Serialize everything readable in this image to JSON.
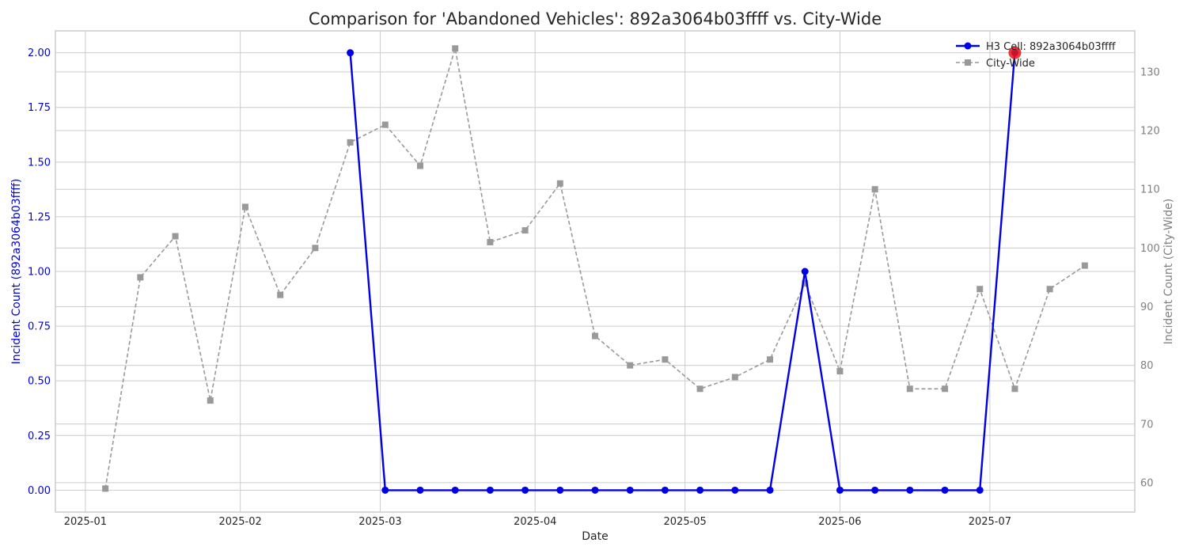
{
  "chart_data": {
    "type": "line",
    "title": "Comparison for 'Abandoned Vehicles': 892a3064b03ffff vs. City-Wide",
    "xlabel": "Date",
    "ylabel_left": "Incident Count (892a3064b03ffff)",
    "ylabel_right": "Incident Count (City-Wide)",
    "x_ticks": [
      "2025-01-01",
      "2025-02-01",
      "2025-03-01",
      "2025-04-01",
      "2025-05-01",
      "2025-06-01",
      "2025-07-01"
    ],
    "x_tick_labels": [
      "2025-01",
      "2025-02",
      "2025-03",
      "2025-04",
      "2025-05",
      "2025-06",
      "2025-07"
    ],
    "xlim": [
      "2024-12-26",
      "2025-07-30"
    ],
    "y_left_ticks": [
      "0.00",
      "0.25",
      "0.50",
      "0.75",
      "1.00",
      "1.25",
      "1.50",
      "1.75",
      "2.00"
    ],
    "ylim_left": [
      -0.1,
      2.1
    ],
    "y_right_ticks": [
      "60",
      "70",
      "80",
      "90",
      "100",
      "110",
      "120",
      "130"
    ],
    "ylim_right": [
      55,
      137
    ],
    "grid": true,
    "legend_position": "top-right",
    "series": [
      {
        "name": "H3 Cell: 892a3064b03ffff",
        "axis": "left",
        "color": "#0000e6",
        "style": "solid",
        "marker": "circle",
        "x": [
          "2025-02-23",
          "2025-03-02",
          "2025-03-09",
          "2025-03-16",
          "2025-03-23",
          "2025-03-30",
          "2025-04-06",
          "2025-04-13",
          "2025-04-20",
          "2025-04-27",
          "2025-05-04",
          "2025-05-11",
          "2025-05-18",
          "2025-05-25",
          "2025-06-01",
          "2025-06-08",
          "2025-06-15",
          "2025-06-22",
          "2025-06-29",
          "2025-07-06"
        ],
        "values": [
          2,
          0,
          0,
          0,
          0,
          0,
          0,
          0,
          0,
          0,
          0,
          0,
          0,
          1,
          0,
          0,
          0,
          0,
          0,
          2
        ]
      },
      {
        "name": "City-Wide",
        "axis": "right",
        "color": "#999999",
        "style": "dashed",
        "marker": "square",
        "x": [
          "2025-01-05",
          "2025-01-12",
          "2025-01-19",
          "2025-01-26",
          "2025-02-02",
          "2025-02-09",
          "2025-02-16",
          "2025-02-23",
          "2025-03-02",
          "2025-03-09",
          "2025-03-16",
          "2025-03-23",
          "2025-03-30",
          "2025-04-06",
          "2025-04-13",
          "2025-04-20",
          "2025-04-27",
          "2025-05-04",
          "2025-05-11",
          "2025-05-18",
          "2025-05-25",
          "2025-06-01",
          "2025-06-08",
          "2025-06-15",
          "2025-06-22",
          "2025-06-29",
          "2025-07-06",
          "2025-07-13",
          "2025-07-20"
        ],
        "values": [
          59,
          95,
          102,
          74,
          107,
          92,
          100,
          118,
          121,
          114,
          134,
          101,
          103,
          111,
          85,
          80,
          81,
          76,
          78,
          81,
          94,
          79,
          110,
          76,
          76,
          93,
          76,
          93,
          97
        ]
      }
    ],
    "highlight": {
      "series": "H3 Cell: 892a3064b03ffff",
      "x": "2025-07-06",
      "value": 2,
      "color": "#ee1111"
    }
  }
}
